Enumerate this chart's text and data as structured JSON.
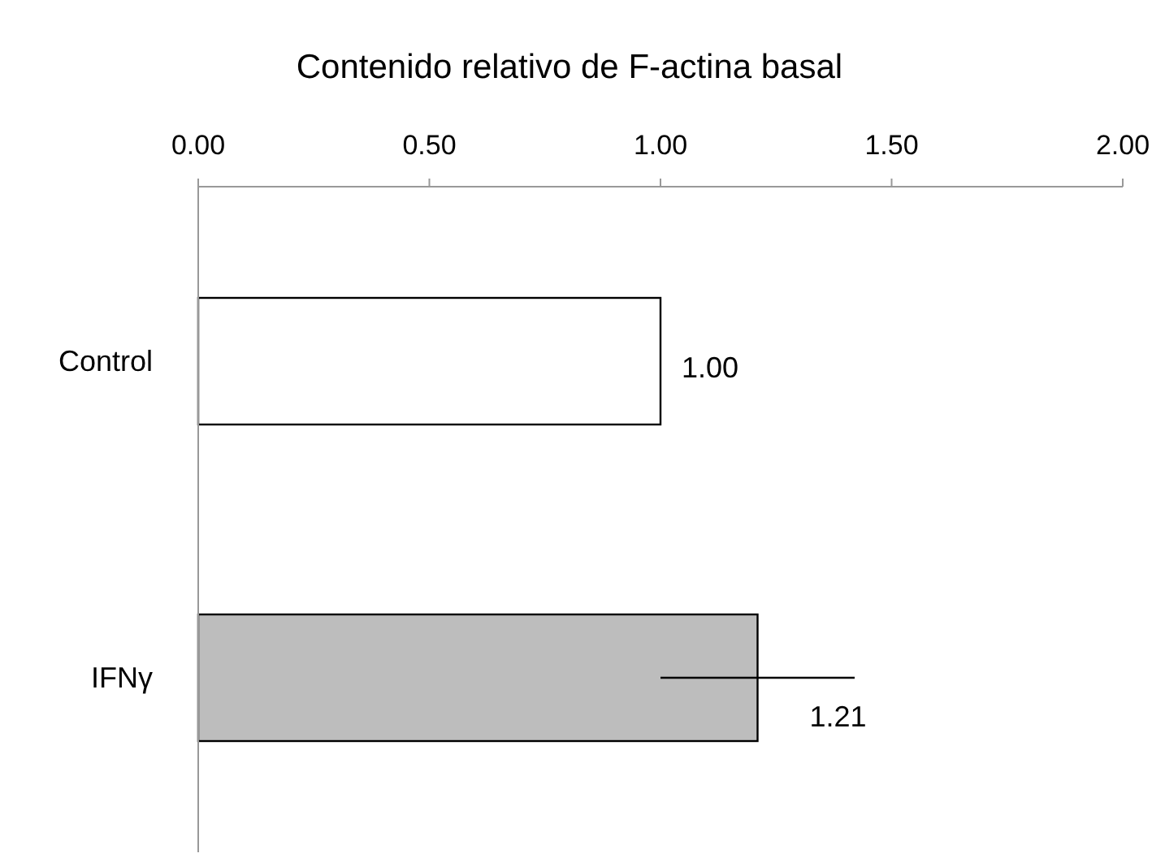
{
  "chart_data": {
    "type": "bar",
    "orientation": "horizontal",
    "title": "Contenido relativo de F-actina basal",
    "categories": [
      "Control",
      "IFNγ"
    ],
    "values": [
      1.0,
      1.21
    ],
    "colors": [
      "#ffffff",
      "#bdbdbd"
    ],
    "errors": [
      null,
      0.21
    ],
    "xlim": [
      0,
      2
    ],
    "xticks": [
      {
        "value": 0,
        "label": "0.00"
      },
      {
        "value": 0.5,
        "label": "0.50"
      },
      {
        "value": 1,
        "label": "1.00"
      },
      {
        "value": 1.5,
        "label": "1.50"
      },
      {
        "value": 2,
        "label": "2.00"
      }
    ],
    "value_labels": [
      "1.00",
      "1.21"
    ],
    "grid": false
  }
}
